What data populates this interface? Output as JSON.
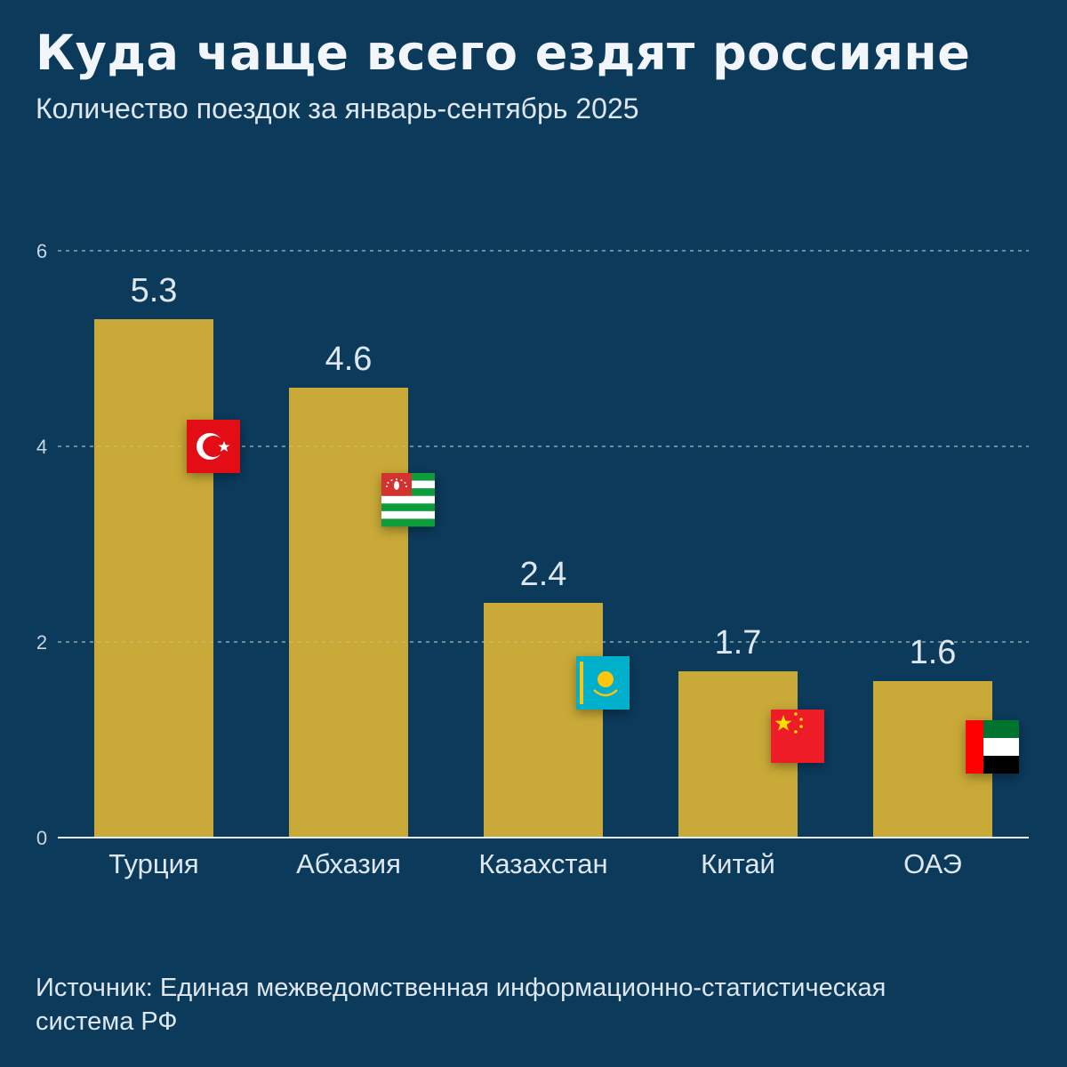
{
  "header": {
    "title": "Куда чаще всего ездят россияне",
    "subtitle": "Количество поездок за январь-сентябрь 2025"
  },
  "footer": {
    "source": "Источник: Единая межведомственная информационно-статистическая система РФ"
  },
  "colors": {
    "background": "#0b3a5b",
    "bar": "#c9a937",
    "grid": "#5f86a6"
  },
  "chart_data": {
    "type": "bar",
    "title": "Куда чаще всего ездят россияне",
    "subtitle": "Количество поездок за январь-сентябрь 2025",
    "categories": [
      "Турция",
      "Абхазия",
      "Казахстан",
      "Китай",
      "ОАЭ"
    ],
    "values": [
      5.3,
      4.6,
      2.4,
      1.7,
      1.6
    ],
    "value_labels": [
      "5.3",
      "4.6",
      "2.4",
      "1.7",
      "1.6"
    ],
    "flags": [
      "turkey-flag-icon",
      "abkhazia-flag-icon",
      "kazakhstan-flag-icon",
      "china-flag-icon",
      "uae-flag-icon"
    ],
    "ylim": [
      0,
      6
    ],
    "yticks": [
      0,
      2,
      4,
      6
    ],
    "grid": true,
    "xlabel": "",
    "ylabel": ""
  }
}
